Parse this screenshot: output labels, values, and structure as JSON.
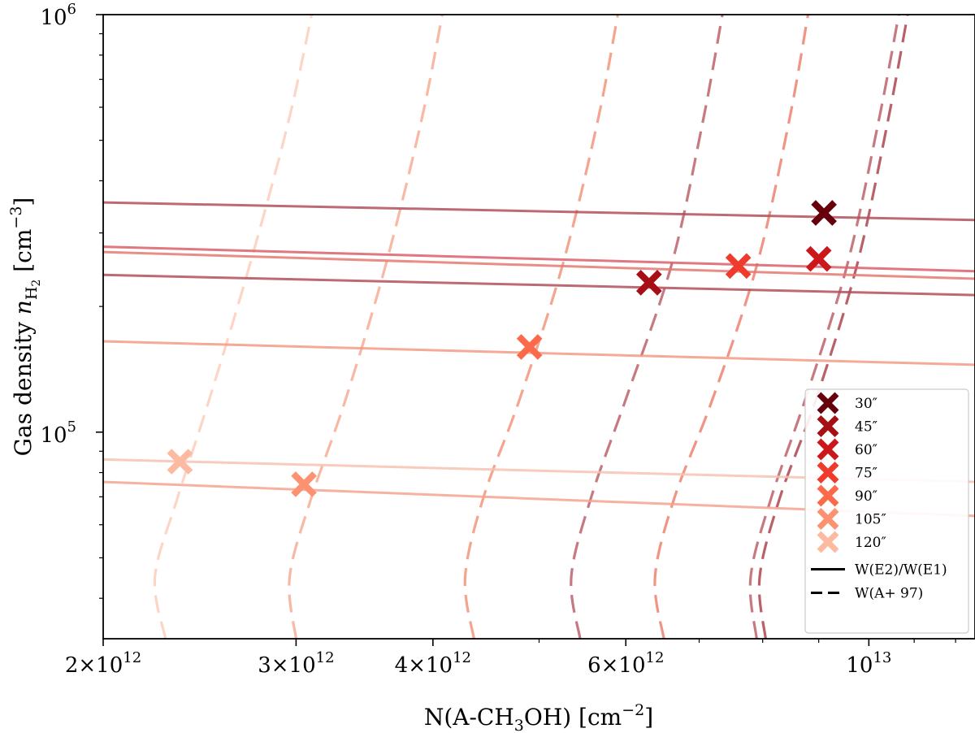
{
  "chart_data": {
    "type": "line",
    "xscale": "log",
    "yscale": "log",
    "xlim": [
      2000000000000.0,
      12500000000000.0
    ],
    "ylim": [
      32000.0,
      1000000.0
    ],
    "xlabel": "N(A-CH3OH) [cm−2]",
    "ylabel": "Gas density nH2 [cm−3]",
    "x_ticks": [
      {
        "value": 2000000000000.0,
        "mantissa": "2",
        "base": "×10",
        "exp": "12"
      },
      {
        "value": 3000000000000.0,
        "mantissa": "3",
        "base": "×10",
        "exp": "12"
      },
      {
        "value": 4000000000000.0,
        "mantissa": "4",
        "base": "×10",
        "exp": "12"
      },
      {
        "value": 6000000000000.0,
        "mantissa": "6",
        "base": "×10",
        "exp": "12"
      },
      {
        "value": 10000000000000.0,
        "mantissa": "",
        "base": "10",
        "exp": "13"
      }
    ],
    "y_ticks": [
      {
        "value": 100000.0,
        "base": "10",
        "exp": "5"
      },
      {
        "value": 1000000.0,
        "base": "10",
        "exp": "6"
      }
    ],
    "points": [
      {
        "name": "30″",
        "x": 9100000000000.0,
        "y": 335000.0,
        "color": "#67000d"
      },
      {
        "name": "45″",
        "x": 6300000000000.0,
        "y": 228000.0,
        "color": "#a50f15"
      },
      {
        "name": "60″",
        "x": 9000000000000.0,
        "y": 260000.0,
        "color": "#cb181d"
      },
      {
        "name": "75″",
        "x": 7600000000000.0,
        "y": 250000.0,
        "color": "#ef3b2c"
      },
      {
        "name": "90″",
        "x": 4900000000000.0,
        "y": 160000.0,
        "color": "#fb6a4a"
      },
      {
        "name": "105″",
        "x": 3050000000000.0,
        "y": 75000.0,
        "color": "#fc9272"
      },
      {
        "name": "120″",
        "x": 2350000000000.0,
        "y": 85000.0,
        "color": "#fcbba1"
      }
    ],
    "solid_series": [
      {
        "name": "W(E2)/W(E1) 30″",
        "x": [
          2000000000000.0,
          12500000000000.0
        ],
        "y": [
          355000.0,
          322000.0
        ],
        "color": "#b0505a"
      },
      {
        "name": "W(E2)/W(E1) 45″",
        "x": [
          2000000000000.0,
          12500000000000.0
        ],
        "y": [
          238000.0,
          213000.0
        ],
        "color": "#b0505a"
      },
      {
        "name": "W(E2)/W(E1) 60″",
        "x": [
          2000000000000.0,
          12500000000000.0
        ],
        "y": [
          278000.0,
          243000.0
        ],
        "color": "#d9606a"
      },
      {
        "name": "W(E2)/W(E1) 75″",
        "x": [
          2000000000000.0,
          12500000000000.0
        ],
        "y": [
          270000.0,
          233000.0
        ],
        "color": "#e57a72"
      },
      {
        "name": "W(E2)/W(E1) 90″",
        "x": [
          2000000000000.0,
          12500000000000.0
        ],
        "y": [
          165000.0,
          145000.0
        ],
        "color": "#f39a85"
      },
      {
        "name": "W(E2)/W(E1) 105″",
        "x": [
          2000000000000.0,
          12500000000000.0
        ],
        "y": [
          76000.0,
          63000.0
        ],
        "color": "#f4a58f"
      },
      {
        "name": "W(E2)/W(E1) 120″",
        "x": [
          2000000000000.0,
          12500000000000.0
        ],
        "y": [
          86000.0,
          76000.0
        ],
        "color": "#f7c2b0"
      }
    ],
    "dashed_series": [
      {
        "name": "W(A+ 97) 120″",
        "x": [
          2280000000000.0,
          2230000000000.0,
          2340000000000.0,
          2500000000000.0,
          2720000000000.0,
          2950000000000.0,
          3100000000000.0
        ],
        "y": [
          32000.0,
          45000.0,
          70000.0,
          120000.0,
          250000.0,
          550000.0,
          1000000.0
        ],
        "color": "#fcd0c0"
      },
      {
        "name": "W(A+ 97) 105″",
        "x": [
          3000000000000.0,
          2960000000000.0,
          3100000000000.0,
          3330000000000.0,
          3620000000000.0,
          3900000000000.0,
          4080000000000.0
        ],
        "y": [
          32000.0,
          45000.0,
          70000.0,
          120000.0,
          250000.0,
          550000.0,
          1000000.0
        ],
        "color": "#f7b09a"
      },
      {
        "name": "W(A+ 97) 90″",
        "x": [
          4360000000000.0,
          4280000000000.0,
          4450000000000.0,
          4800000000000.0,
          5250000000000.0,
          5650000000000.0,
          5900000000000.0
        ],
        "y": [
          32000.0,
          45000.0,
          70000.0,
          120000.0,
          250000.0,
          550000.0,
          1000000.0
        ],
        "color": "#f49a83"
      },
      {
        "name": "W(A+ 97) 45″",
        "x": [
          5450000000000.0,
          5350000000000.0,
          5580000000000.0,
          6000000000000.0,
          6600000000000.0,
          7050000000000.0,
          7350000000000.0
        ],
        "y": [
          32000.0,
          45000.0,
          70000.0,
          120000.0,
          250000.0,
          550000.0,
          1000000.0
        ],
        "color": "#c06a72"
      },
      {
        "name": "W(A+ 97) 75″",
        "x": [
          6500000000000.0,
          6380000000000.0,
          6650000000000.0,
          7200000000000.0,
          7900000000000.0,
          8450000000000.0,
          8800000000000.0
        ],
        "y": [
          32000.0,
          45000.0,
          70000.0,
          120000.0,
          250000.0,
          550000.0,
          1000000.0
        ],
        "color": "#ee8878"
      },
      {
        "name": "W(A+ 97) 60″",
        "x": [
          7900000000000.0,
          7800000000000.0,
          8150000000000.0,
          8750000000000.0,
          9550000000000.0,
          10200000000000.0,
          10650000000000.0
        ],
        "y": [
          32000.0,
          45000.0,
          70000.0,
          120000.0,
          250000.0,
          550000.0,
          1000000.0
        ],
        "color": "#c06a72"
      },
      {
        "name": "W(A+ 97) 30″",
        "x": [
          8050000000000.0,
          7950000000000.0,
          8300000000000.0,
          8950000000000.0,
          9750000000000.0,
          10400000000000.0,
          10850000000000.0
        ],
        "y": [
          32000.0,
          45000.0,
          70000.0,
          120000.0,
          250000.0,
          550000.0,
          1000000.0
        ],
        "color": "#b0505a"
      }
    ],
    "legend": {
      "position": "lower-right",
      "markers": [
        "30″",
        "45″",
        "60″",
        "75″",
        "90″",
        "105″",
        "120″"
      ],
      "solid_label": "W(E2)/W(E1)",
      "dashed_label": "W(A+ 97)"
    }
  }
}
